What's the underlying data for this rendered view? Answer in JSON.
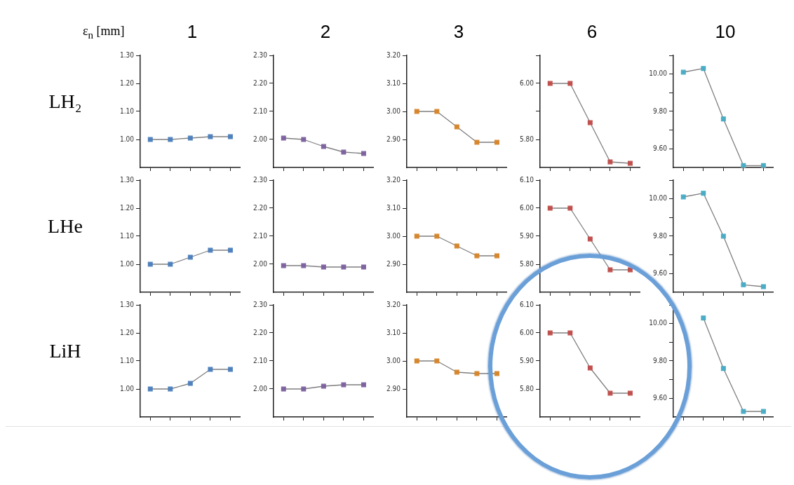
{
  "chart_data": [
    {
      "type": "line",
      "title": "1",
      "ylabel": "LH₂",
      "annotations": [
        "ε$_{n}$ [mm]"
      ],
      "categories": [
        null,
        null,
        null,
        null,
        null
      ],
      "series": [
        {
          "color": "#4f81bd",
          "values": [
            1.0,
            1.0,
            1.005,
            1.01,
            1.01
          ]
        }
      ],
      "ylim": [
        0.9,
        1.3
      ],
      "yticks": [
        {
          "value": 1,
          "label": "1.00"
        },
        {
          "value": 1.1,
          "label": "1.10"
        },
        {
          "value": 1.2,
          "label": "1.20"
        },
        {
          "value": 1.3,
          "label": "1.30"
        }
      ],
      "tick_labels": "y",
      "marker": "square",
      "line_style": "solid"
    },
    {
      "type": "line",
      "title": "2",
      "categories": [
        null,
        null,
        null,
        null,
        null
      ],
      "series": [
        {
          "color": "#7f63a1",
          "values": [
            2.005,
            2.0,
            1.975,
            1.955,
            1.95
          ]
        }
      ],
      "ylim": [
        1.9,
        2.3
      ],
      "yticks": [
        {
          "value": 2,
          "label": "2.00"
        },
        {
          "value": 2.1,
          "label": "2.10"
        },
        {
          "value": 2.2,
          "label": "2.20"
        },
        {
          "value": 2.3,
          "label": "2.30"
        }
      ],
      "tick_labels": "y",
      "marker": "square",
      "line_style": "solid"
    },
    {
      "type": "line",
      "title": "3",
      "categories": [
        null,
        null,
        null,
        null,
        null
      ],
      "series": [
        {
          "color": "#d6862c",
          "values": [
            3.0,
            3.0,
            2.945,
            2.89,
            2.89
          ]
        }
      ],
      "ylim": [
        2.8,
        3.2
      ],
      "yticks": [
        {
          "value": 2.9,
          "label": "2.90"
        },
        {
          "value": 3,
          "label": "3.00"
        },
        {
          "value": 3.1,
          "label": "3.10"
        },
        {
          "value": 3.2,
          "label": "3.20"
        }
      ],
      "tick_labels": "y",
      "marker": "square",
      "line_style": "solid"
    },
    {
      "type": "line",
      "title": "6",
      "categories": [
        null,
        null,
        null,
        null,
        null
      ],
      "series": [
        {
          "color": "#c0504d",
          "values": [
            6.0,
            6.0,
            5.86,
            5.72,
            5.715
          ]
        }
      ],
      "ylim": [
        5.7,
        6.1
      ],
      "yticks": [
        {
          "value": 5.8,
          "label": "5.80"
        },
        {
          "value": 5.9,
          "label": null
        },
        {
          "value": 6,
          "label": "6.00"
        },
        {
          "value": 6.1,
          "label": null
        }
      ],
      "tick_labels": "y",
      "marker": "square",
      "line_style": "solid"
    },
    {
      "type": "line",
      "title": "10",
      "categories": [
        null,
        null,
        null,
        null,
        null
      ],
      "series": [
        {
          "color": "#4bacc6",
          "values": [
            10.01,
            10.03,
            9.76,
            9.51,
            9.51
          ]
        }
      ],
      "ylim": [
        9.5,
        10.1
      ],
      "yticks": [
        {
          "value": 9.6,
          "label": "9.60"
        },
        {
          "value": 9.7,
          "label": null
        },
        {
          "value": 9.8,
          "label": "9.80"
        },
        {
          "value": 9.9,
          "label": null
        },
        {
          "value": 10,
          "label": "10.00"
        },
        {
          "value": 10.1,
          "label": null
        }
      ],
      "tick_labels": "y",
      "marker": "square",
      "line_style": "solid"
    },
    {
      "type": "line",
      "ylabel": "LHe",
      "categories": [
        null,
        null,
        null,
        null,
        null
      ],
      "series": [
        {
          "color": "#4f81bd",
          "values": [
            1.0,
            1.0,
            1.025,
            1.05,
            1.05
          ]
        }
      ],
      "ylim": [
        0.9,
        1.3
      ],
      "yticks": [
        {
          "value": 1,
          "label": "1.00"
        },
        {
          "value": 1.1,
          "label": "1.10"
        },
        {
          "value": 1.2,
          "label": "1.20"
        },
        {
          "value": 1.3,
          "label": "1.30"
        }
      ],
      "tick_labels": "y",
      "marker": "square",
      "line_style": "solid"
    },
    {
      "type": "line",
      "categories": [
        null,
        null,
        null,
        null,
        null
      ],
      "series": [
        {
          "color": "#7f63a1",
          "values": [
            1.995,
            1.995,
            1.99,
            1.99,
            1.99
          ]
        }
      ],
      "ylim": [
        1.9,
        2.3
      ],
      "yticks": [
        {
          "value": 2,
          "label": "2.00"
        },
        {
          "value": 2.1,
          "label": "2.10"
        },
        {
          "value": 2.2,
          "label": "2.20"
        },
        {
          "value": 2.3,
          "label": "2.30"
        }
      ],
      "tick_labels": "y",
      "marker": "square",
      "line_style": "solid"
    },
    {
      "type": "line",
      "categories": [
        null,
        null,
        null,
        null,
        null
      ],
      "series": [
        {
          "color": "#d6862c",
          "values": [
            3.0,
            3.0,
            2.965,
            2.93,
            2.93
          ]
        }
      ],
      "ylim": [
        2.8,
        3.2
      ],
      "yticks": [
        {
          "value": 2.9,
          "label": "2.90"
        },
        {
          "value": 3,
          "label": "3.00"
        },
        {
          "value": 3.1,
          "label": "3.10"
        },
        {
          "value": 3.2,
          "label": "3.20"
        }
      ],
      "tick_labels": "y",
      "marker": "square",
      "line_style": "solid"
    },
    {
      "type": "line",
      "categories": [
        null,
        null,
        null,
        null,
        null
      ],
      "series": [
        {
          "color": "#c0504d",
          "values": [
            6.0,
            6.0,
            5.89,
            5.78,
            5.78
          ]
        }
      ],
      "ylim": [
        5.7,
        6.1
      ],
      "yticks": [
        {
          "value": 5.8,
          "label": "5.80"
        },
        {
          "value": 5.9,
          "label": "5.90"
        },
        {
          "value": 6,
          "label": "6.00"
        },
        {
          "value": 6.1,
          "label": "6.10"
        }
      ],
      "tick_labels": "y",
      "marker": "square",
      "line_style": "solid"
    },
    {
      "type": "line",
      "categories": [
        null,
        null,
        null,
        null,
        null
      ],
      "series": [
        {
          "color": "#4bacc6",
          "values": [
            10.01,
            10.03,
            9.8,
            9.54,
            9.53
          ]
        }
      ],
      "ylim": [
        9.5,
        10.1
      ],
      "yticks": [
        {
          "value": 9.6,
          "label": "9.60"
        },
        {
          "value": 9.7,
          "label": null
        },
        {
          "value": 9.8,
          "label": "9.80"
        },
        {
          "value": 9.9,
          "label": null
        },
        {
          "value": 10,
          "label": "10.00"
        },
        {
          "value": 10.1,
          "label": null
        }
      ],
      "tick_labels": "y",
      "marker": "square",
      "line_style": "solid"
    },
    {
      "type": "line",
      "ylabel": "LiH",
      "categories": [
        null,
        null,
        null,
        null,
        null
      ],
      "series": [
        {
          "color": "#4f81bd",
          "values": [
            1.0,
            1.0,
            1.02,
            1.07,
            1.07
          ]
        }
      ],
      "ylim": [
        0.9,
        1.3
      ],
      "yticks": [
        {
          "value": 1,
          "label": "1.00"
        },
        {
          "value": 1.1,
          "label": "1.10"
        },
        {
          "value": 1.2,
          "label": "1.20"
        },
        {
          "value": 1.3,
          "label": "1.30"
        }
      ],
      "tick_labels": "y",
      "marker": "square",
      "line_style": "solid"
    },
    {
      "type": "line",
      "categories": [
        null,
        null,
        null,
        null,
        null
      ],
      "series": [
        {
          "color": "#7f63a1",
          "values": [
            2.0,
            2.0,
            2.01,
            2.015,
            2.015
          ]
        }
      ],
      "ylim": [
        1.9,
        2.3
      ],
      "yticks": [
        {
          "value": 2,
          "label": "2.00"
        },
        {
          "value": 2.1,
          "label": "2.10"
        },
        {
          "value": 2.2,
          "label": "2.20"
        },
        {
          "value": 2.3,
          "label": "2.30"
        }
      ],
      "tick_labels": "y",
      "marker": "square",
      "line_style": "solid"
    },
    {
      "type": "line",
      "categories": [
        null,
        null,
        null,
        null,
        null
      ],
      "series": [
        {
          "color": "#d6862c",
          "values": [
            3.0,
            3.0,
            2.96,
            2.955,
            2.955
          ]
        }
      ],
      "ylim": [
        2.8,
        3.2
      ],
      "yticks": [
        {
          "value": 2.9,
          "label": "2.90"
        },
        {
          "value": 3,
          "label": "3.00"
        },
        {
          "value": 3.1,
          "label": "3.10"
        },
        {
          "value": 3.2,
          "label": "3.20"
        }
      ],
      "tick_labels": "y",
      "marker": "square",
      "line_style": "solid"
    },
    {
      "type": "line",
      "categories": [
        null,
        null,
        null,
        null,
        null
      ],
      "series": [
        {
          "color": "#c0504d",
          "values": [
            6.0,
            6.0,
            5.875,
            5.785,
            5.785
          ]
        }
      ],
      "ylim": [
        5.7,
        6.1
      ],
      "yticks": [
        {
          "value": 5.8,
          "label": "5.80"
        },
        {
          "value": 5.9,
          "label": "5.90"
        },
        {
          "value": 6,
          "label": "6.00"
        },
        {
          "value": 6.1,
          "label": "6.10"
        }
      ],
      "tick_labels": "y",
      "marker": "square",
      "line_style": "solid"
    },
    {
      "type": "line",
      "categories": [
        null,
        null,
        null,
        null,
        null
      ],
      "series": [
        {
          "color": "#4bacc6",
          "values": [
            null,
            10.03,
            9.76,
            9.53,
            9.53
          ]
        }
      ],
      "ylim": [
        9.5,
        10.1
      ],
      "yticks": [
        {
          "value": 9.6,
          "label": "9.60"
        },
        {
          "value": 9.7,
          "label": null
        },
        {
          "value": 9.8,
          "label": "9.80"
        },
        {
          "value": 9.9,
          "label": null
        },
        {
          "value": 10,
          "label": "10.00"
        },
        {
          "value": 10.1,
          "label": null
        }
      ],
      "tick_labels": "y",
      "marker": "square",
      "line_style": "solid"
    }
  ]
}
